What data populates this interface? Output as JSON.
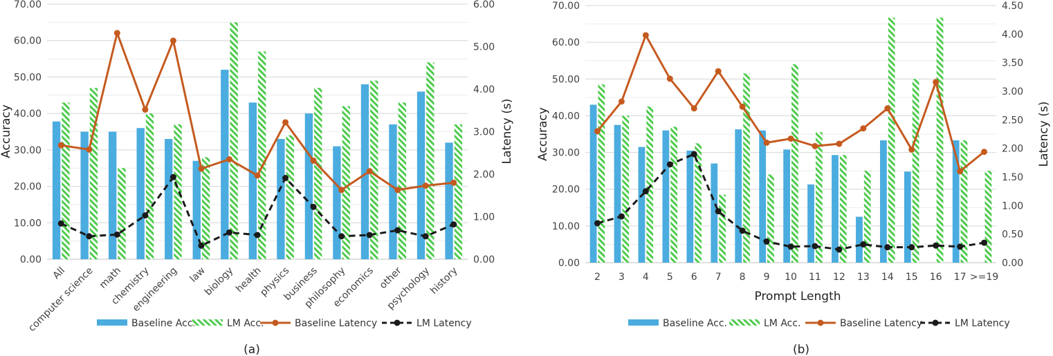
{
  "chart_data": [
    {
      "type": "bar",
      "caption": "(a)",
      "title": "",
      "xlabel": "",
      "ylabel": "Accuracy",
      "y2label": "Latency (s)",
      "ylim": [
        0,
        70
      ],
      "y2lim": [
        0,
        6
      ],
      "yticks": [
        "0.00",
        "10.00",
        "20.00",
        "30.00",
        "40.00",
        "50.00",
        "60.00",
        "70.00"
      ],
      "y2ticks": [
        "0.00",
        "1.00",
        "2.00",
        "3.00",
        "4.00",
        "5.00",
        "6.00"
      ],
      "grid": true,
      "legend_position": "bottom",
      "categories": [
        "All",
        "computer science",
        "math",
        "chemistry",
        "engineering",
        "law",
        "biology",
        "health",
        "physics",
        "business",
        "philosophy",
        "economics",
        "other",
        "psychology",
        "history"
      ],
      "series": [
        {
          "name": "Baseline Acc.",
          "kind": "bar",
          "axis": "left",
          "color": "#4BACDF",
          "values": [
            37.8,
            35,
            35,
            36,
            33,
            27,
            52,
            43,
            33,
            40,
            31,
            48,
            37,
            46,
            32
          ]
        },
        {
          "name": "LM Acc.",
          "kind": "bar-hatched",
          "axis": "left",
          "color": "#4CCB4C",
          "values": [
            43,
            47,
            25,
            40,
            37,
            28,
            65,
            57,
            34,
            47,
            42,
            49,
            43,
            54,
            37
          ]
        },
        {
          "name": "Baseline Latency",
          "kind": "line",
          "axis": "right",
          "color": "#C55A1F",
          "values": [
            2.68,
            2.58,
            5.32,
            3.52,
            5.14,
            2.13,
            2.35,
            1.97,
            3.22,
            2.32,
            1.63,
            2.07,
            1.63,
            1.73,
            1.8
          ]
        },
        {
          "name": "LM Latency",
          "kind": "dashed-line",
          "axis": "right",
          "color": "#1a1a1a",
          "values": [
            0.84,
            0.54,
            0.58,
            1.03,
            1.93,
            0.32,
            0.63,
            0.57,
            1.91,
            1.23,
            0.54,
            0.57,
            0.68,
            0.54,
            0.82
          ]
        }
      ]
    },
    {
      "type": "bar",
      "caption": "(b)",
      "title": "",
      "xlabel": "Prompt Length",
      "ylabel": "Accuracy",
      "y2label": "Latency (s)",
      "ylim": [
        0,
        70
      ],
      "y2lim": [
        0,
        4.5
      ],
      "yticks": [
        "0.00",
        "10.00",
        "20.00",
        "30.00",
        "40.00",
        "50.00",
        "60.00",
        "70.00"
      ],
      "y2ticks": [
        "0.00",
        "0.50",
        "1.00",
        "1.50",
        "2.00",
        "2.50",
        "3.00",
        "3.50",
        "4.00",
        "4.50"
      ],
      "grid": true,
      "legend_position": "bottom",
      "categories": [
        "2",
        "3",
        "4",
        "5",
        "6",
        "7",
        "8",
        "9",
        "10",
        "11",
        "12",
        "13",
        "14",
        "15",
        "16",
        "17",
        ">=19"
      ],
      "series": [
        {
          "name": "Baseline Acc.",
          "kind": "bar",
          "axis": "left",
          "color": "#4BACDF",
          "values": [
            43,
            37.5,
            31.5,
            36,
            30.5,
            27,
            36.3,
            36,
            30.8,
            21.3,
            29.3,
            12.5,
            33.3,
            24.8,
            0,
            33.3,
            0
          ]
        },
        {
          "name": "LM Acc.",
          "kind": "bar-hatched",
          "axis": "left",
          "color": "#4CCB4C",
          "values": [
            48.5,
            40,
            42.5,
            37,
            32.5,
            18.5,
            51.5,
            24,
            54,
            35.5,
            29.3,
            25,
            66.7,
            50,
            66.7,
            33.3,
            25
          ]
        },
        {
          "name": "Baseline Latency",
          "kind": "line",
          "axis": "right",
          "color": "#C55A1F",
          "values": [
            2.3,
            2.82,
            3.98,
            3.22,
            2.7,
            3.35,
            2.73,
            2.1,
            2.17,
            2.04,
            2.08,
            2.35,
            2.7,
            1.98,
            3.16,
            1.6,
            1.94
          ]
        },
        {
          "name": "LM Latency",
          "kind": "dashed-line",
          "axis": "right",
          "color": "#1a1a1a",
          "values": [
            0.69,
            0.81,
            1.25,
            1.72,
            1.9,
            0.9,
            0.56,
            0.37,
            0.28,
            0.29,
            0.23,
            0.32,
            0.27,
            0.27,
            0.3,
            0.28,
            0.35
          ]
        }
      ]
    }
  ]
}
